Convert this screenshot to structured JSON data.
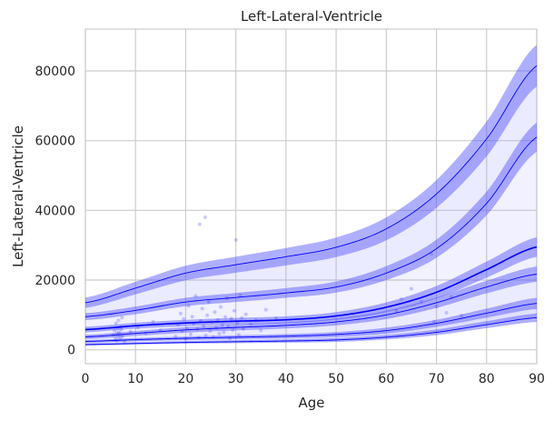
{
  "chart_data": {
    "type": "line",
    "title": "Left-Lateral-Ventricle",
    "xlabel": "Age",
    "ylabel": "Left-Lateral-Ventricle",
    "xlim": [
      0,
      90
    ],
    "ylim": [
      -4000,
      92000
    ],
    "xticks": [
      0,
      10,
      20,
      30,
      40,
      50,
      60,
      70,
      80,
      90
    ],
    "yticks": [
      0,
      20000,
      40000,
      60000,
      80000
    ],
    "grid": true,
    "legend": "none",
    "colors": {
      "line": "#0000ff",
      "band_outer": "#4d4dff",
      "band_inner": "#9999ff",
      "scatter": "#3333ff",
      "grid": "#cccccc",
      "background": "#ffffff"
    },
    "x": [
      0,
      10,
      20,
      30,
      40,
      50,
      60,
      70,
      80,
      90
    ],
    "centiles": [
      {
        "values": [
          1500,
          1800,
          2100,
          2300,
          2500,
          2800,
          3600,
          5000,
          7200,
          9200
        ],
        "band": [
          300,
          300,
          350,
          400,
          450,
          550,
          650,
          800,
          1000,
          1200
        ]
      },
      {
        "values": [
          2400,
          2900,
          3300,
          3600,
          3900,
          4400,
          5500,
          7600,
          10500,
          13300
        ],
        "band": [
          400,
          450,
          500,
          550,
          600,
          700,
          850,
          1000,
          1300,
          1600
        ]
      },
      {
        "values": [
          3700,
          4700,
          5700,
          6400,
          7000,
          8000,
          10000,
          13500,
          18000,
          21700
        ],
        "band": [
          600,
          700,
          800,
          850,
          900,
          1000,
          1200,
          1500,
          1800,
          2200
        ]
      },
      {
        "values": [
          5800,
          6900,
          7700,
          8200,
          8600,
          9700,
          12200,
          16500,
          23000,
          29500
        ],
        "band": [
          800,
          850,
          900,
          950,
          1000,
          1100,
          1400,
          1800,
          2300,
          2800
        ]
      },
      {
        "values": [
          9500,
          11300,
          13700,
          15000,
          16300,
          18000,
          22000,
          29000,
          42000,
          61000
        ],
        "band": [
          1000,
          1100,
          1200,
          1300,
          1400,
          1600,
          2000,
          2600,
          3400,
          4200
        ]
      },
      {
        "values": [
          13500,
          17700,
          22000,
          24400,
          26700,
          29400,
          34700,
          44700,
          60500,
          81500
        ],
        "band": [
          1500,
          1800,
          2100,
          2300,
          2500,
          2800,
          3300,
          4000,
          5000,
          6000
        ]
      }
    ],
    "points": [
      [
        5.5,
        4200
      ],
      [
        5.8,
        5500
      ],
      [
        6.0,
        3200
      ],
      [
        6.1,
        7600
      ],
      [
        6.2,
        2600
      ],
      [
        6.3,
        4800
      ],
      [
        6.4,
        6200
      ],
      [
        6.5,
        3900
      ],
      [
        6.6,
        8400
      ],
      [
        6.7,
        5100
      ],
      [
        6.8,
        2900
      ],
      [
        6.9,
        4500
      ],
      [
        7.0,
        6600
      ],
      [
        7.1,
        3600
      ],
      [
        7.2,
        5800
      ],
      [
        7.3,
        9200
      ],
      [
        7.5,
        4100
      ],
      [
        7.8,
        2400
      ],
      [
        9.0,
        5200
      ],
      [
        10.5,
        6400
      ],
      [
        12.0,
        4700
      ],
      [
        13.5,
        8000
      ],
      [
        15.0,
        5600
      ],
      [
        18.0,
        3800
      ],
      [
        18.5,
        7200
      ],
      [
        19.0,
        10400
      ],
      [
        19.3,
        5300
      ],
      [
        19.6,
        8800
      ],
      [
        20.0,
        3100
      ],
      [
        20.3,
        6100
      ],
      [
        20.6,
        12600
      ],
      [
        21.0,
        4400
      ],
      [
        21.3,
        9500
      ],
      [
        21.6,
        7400
      ],
      [
        22.0,
        15400
      ],
      [
        22.3,
        5900
      ],
      [
        22.6,
        3500
      ],
      [
        22.8,
        36000
      ],
      [
        23.0,
        8300
      ],
      [
        23.3,
        11800
      ],
      [
        23.6,
        6800
      ],
      [
        23.9,
        38000
      ],
      [
        24.0,
        4100
      ],
      [
        24.3,
        9900
      ],
      [
        24.6,
        13700
      ],
      [
        24.9,
        5400
      ],
      [
        25.2,
        7900
      ],
      [
        25.5,
        3700
      ],
      [
        25.8,
        10800
      ],
      [
        26.1,
        6300
      ],
      [
        26.4,
        8600
      ],
      [
        26.7,
        4600
      ],
      [
        27.0,
        12300
      ],
      [
        27.3,
        7100
      ],
      [
        27.6,
        5000
      ],
      [
        27.9,
        9400
      ],
      [
        28.2,
        14800
      ],
      [
        28.5,
        6700
      ],
      [
        28.8,
        3300
      ],
      [
        29.1,
        8900
      ],
      [
        29.4,
        5700
      ],
      [
        29.7,
        11200
      ],
      [
        30.0,
        31500
      ],
      [
        30.3,
        7600
      ],
      [
        30.6,
        4300
      ],
      [
        30.9,
        15600
      ],
      [
        31.2,
        9100
      ],
      [
        31.5,
        6000
      ],
      [
        32.0,
        10200
      ],
      [
        33.0,
        7300
      ],
      [
        34.0,
        8400
      ],
      [
        35.0,
        5600
      ],
      [
        36.0,
        11500
      ],
      [
        38.0,
        9000
      ],
      [
        62.0,
        11200
      ],
      [
        63.0,
        14500
      ],
      [
        65.0,
        17500
      ],
      [
        67.0,
        13800
      ],
      [
        69.0,
        27500
      ],
      [
        69.5,
        8100
      ],
      [
        70.0,
        12400
      ],
      [
        72.0,
        10600
      ],
      [
        73.0,
        15200
      ],
      [
        75.0,
        9800
      ]
    ]
  }
}
